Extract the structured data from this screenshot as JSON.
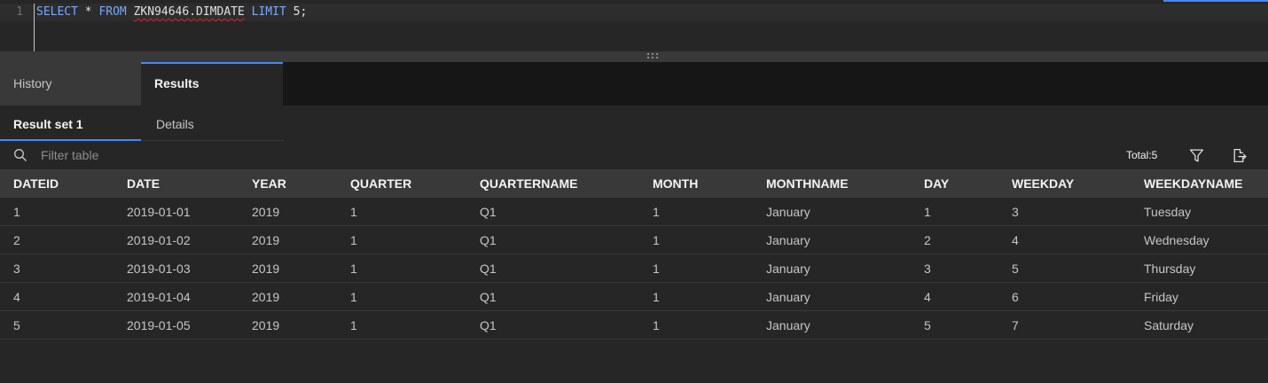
{
  "editor": {
    "line_number": "1",
    "tokens": {
      "select": "SELECT",
      "star": " * ",
      "from": "FROM",
      "space": " ",
      "table": "ZKN94646.DIMDATE",
      "limit": "LIMIT",
      "value": "5;"
    }
  },
  "tabs": {
    "history": "History",
    "results": "Results"
  },
  "subtabs": {
    "result_set": "Result set 1",
    "details": "Details"
  },
  "toolbar": {
    "filter_placeholder": "Filter table",
    "total": "Total:5"
  },
  "table": {
    "columns": [
      "DATEID",
      "DATE",
      "YEAR",
      "QUARTER",
      "QUARTERNAME",
      "MONTH",
      "MONTHNAME",
      "DAY",
      "WEEKDAY",
      "WEEKDAYNAME"
    ],
    "rows": [
      [
        "1",
        "2019-01-01",
        "2019",
        "1",
        "Q1",
        "1",
        "January",
        "1",
        "3",
        "Tuesday"
      ],
      [
        "2",
        "2019-01-02",
        "2019",
        "1",
        "Q1",
        "1",
        "January",
        "2",
        "4",
        "Wednesday"
      ],
      [
        "3",
        "2019-01-03",
        "2019",
        "1",
        "Q1",
        "1",
        "January",
        "3",
        "5",
        "Thursday"
      ],
      [
        "4",
        "2019-01-04",
        "2019",
        "1",
        "Q1",
        "1",
        "January",
        "4",
        "6",
        "Friday"
      ],
      [
        "5",
        "2019-01-05",
        "2019",
        "1",
        "Q1",
        "1",
        "January",
        "5",
        "7",
        "Saturday"
      ]
    ]
  },
  "icons": {
    "search": "search-icon",
    "filter": "filter-icon",
    "export": "export-icon",
    "splitter": "drag-handle-icon"
  },
  "colors": {
    "accent": "#4589ff",
    "keyword": "#78a9ff"
  }
}
